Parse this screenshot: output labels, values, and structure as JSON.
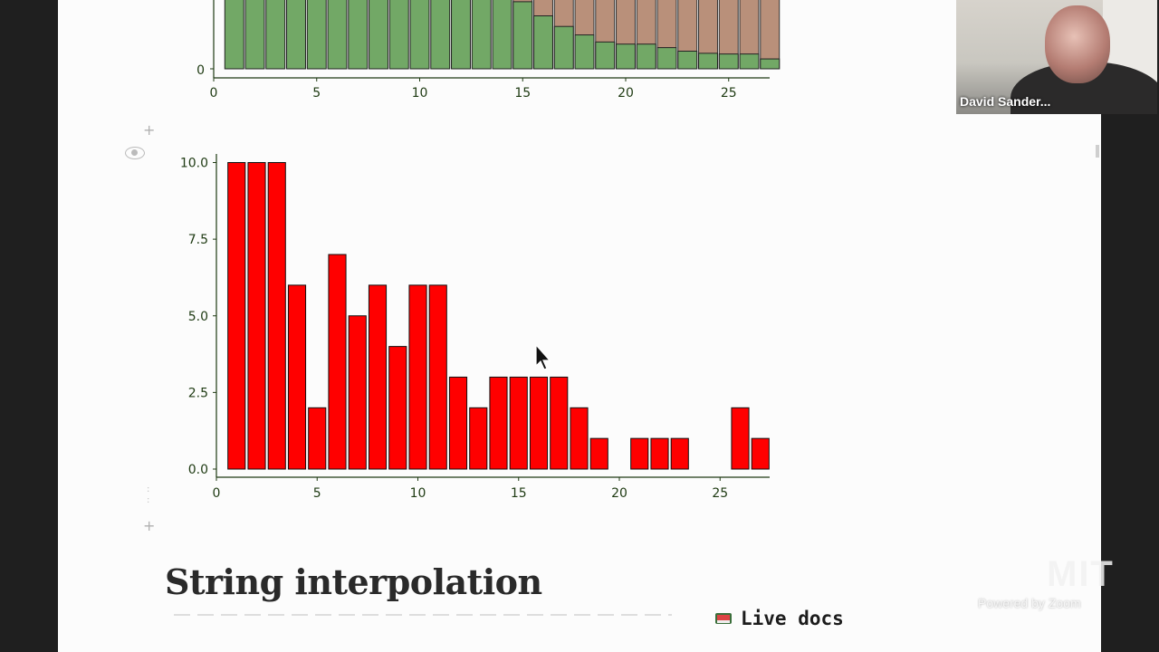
{
  "chart_data": [
    {
      "type": "bar",
      "title": "",
      "xlabel": "",
      "ylabel": "",
      "xlim": [
        0,
        27
      ],
      "ylim_visible_bottom": 0,
      "x_ticks": [
        "0",
        "5",
        "10",
        "15",
        "20",
        "25"
      ],
      "y_ticks": [
        "0"
      ],
      "bar_color": "#72a866",
      "overlay_color": "#b9907a",
      "note": "stacked-style bars, partially scrolled out of view; lower green portions decline after x=15",
      "x": [
        1,
        2,
        3,
        4,
        5,
        6,
        7,
        8,
        9,
        10,
        11,
        12,
        13,
        14,
        15,
        16,
        17,
        18,
        19,
        20,
        21,
        22,
        23,
        24,
        25,
        26,
        27
      ],
      "lower_fraction": [
        1,
        1,
        1,
        1,
        1,
        1,
        1,
        1,
        1,
        1,
        1,
        1,
        1,
        1,
        0.95,
        0.75,
        0.6,
        0.48,
        0.38,
        0.35,
        0.35,
        0.3,
        0.25,
        0.22,
        0.21,
        0.21,
        0.14
      ]
    },
    {
      "type": "bar",
      "title": "",
      "xlabel": "",
      "ylabel": "",
      "xlim": [
        0,
        27
      ],
      "ylim": [
        0,
        10
      ],
      "x_ticks": [
        "0",
        "5",
        "10",
        "15",
        "20",
        "25"
      ],
      "y_ticks": [
        "0.0",
        "2.5",
        "5.0",
        "7.5",
        "10.0"
      ],
      "bar_color": "#ff0000",
      "categories": [
        1,
        2,
        3,
        4,
        5,
        6,
        7,
        8,
        9,
        10,
        11,
        12,
        13,
        14,
        15,
        16,
        17,
        18,
        19,
        20,
        21,
        22,
        23,
        24,
        25,
        26,
        27
      ],
      "values": [
        10,
        10,
        10,
        6,
        2,
        7,
        5,
        6,
        4,
        6,
        6,
        3,
        2,
        3,
        3,
        3,
        3,
        2,
        1,
        0,
        1,
        1,
        1,
        0,
        0,
        2,
        1
      ]
    }
  ],
  "notebook": {
    "heading": "String interpolation",
    "live_docs_label": "Live docs"
  },
  "video": {
    "participant_name": "David Sander..."
  },
  "watermark": {
    "logo": "MIT",
    "powered_by": "Powered by Zoom"
  },
  "icons": {
    "live_docs": "book-icon",
    "cell_add": "plus-icon",
    "cell_hide": "eye-icon",
    "pointer": "cursor-icon"
  }
}
